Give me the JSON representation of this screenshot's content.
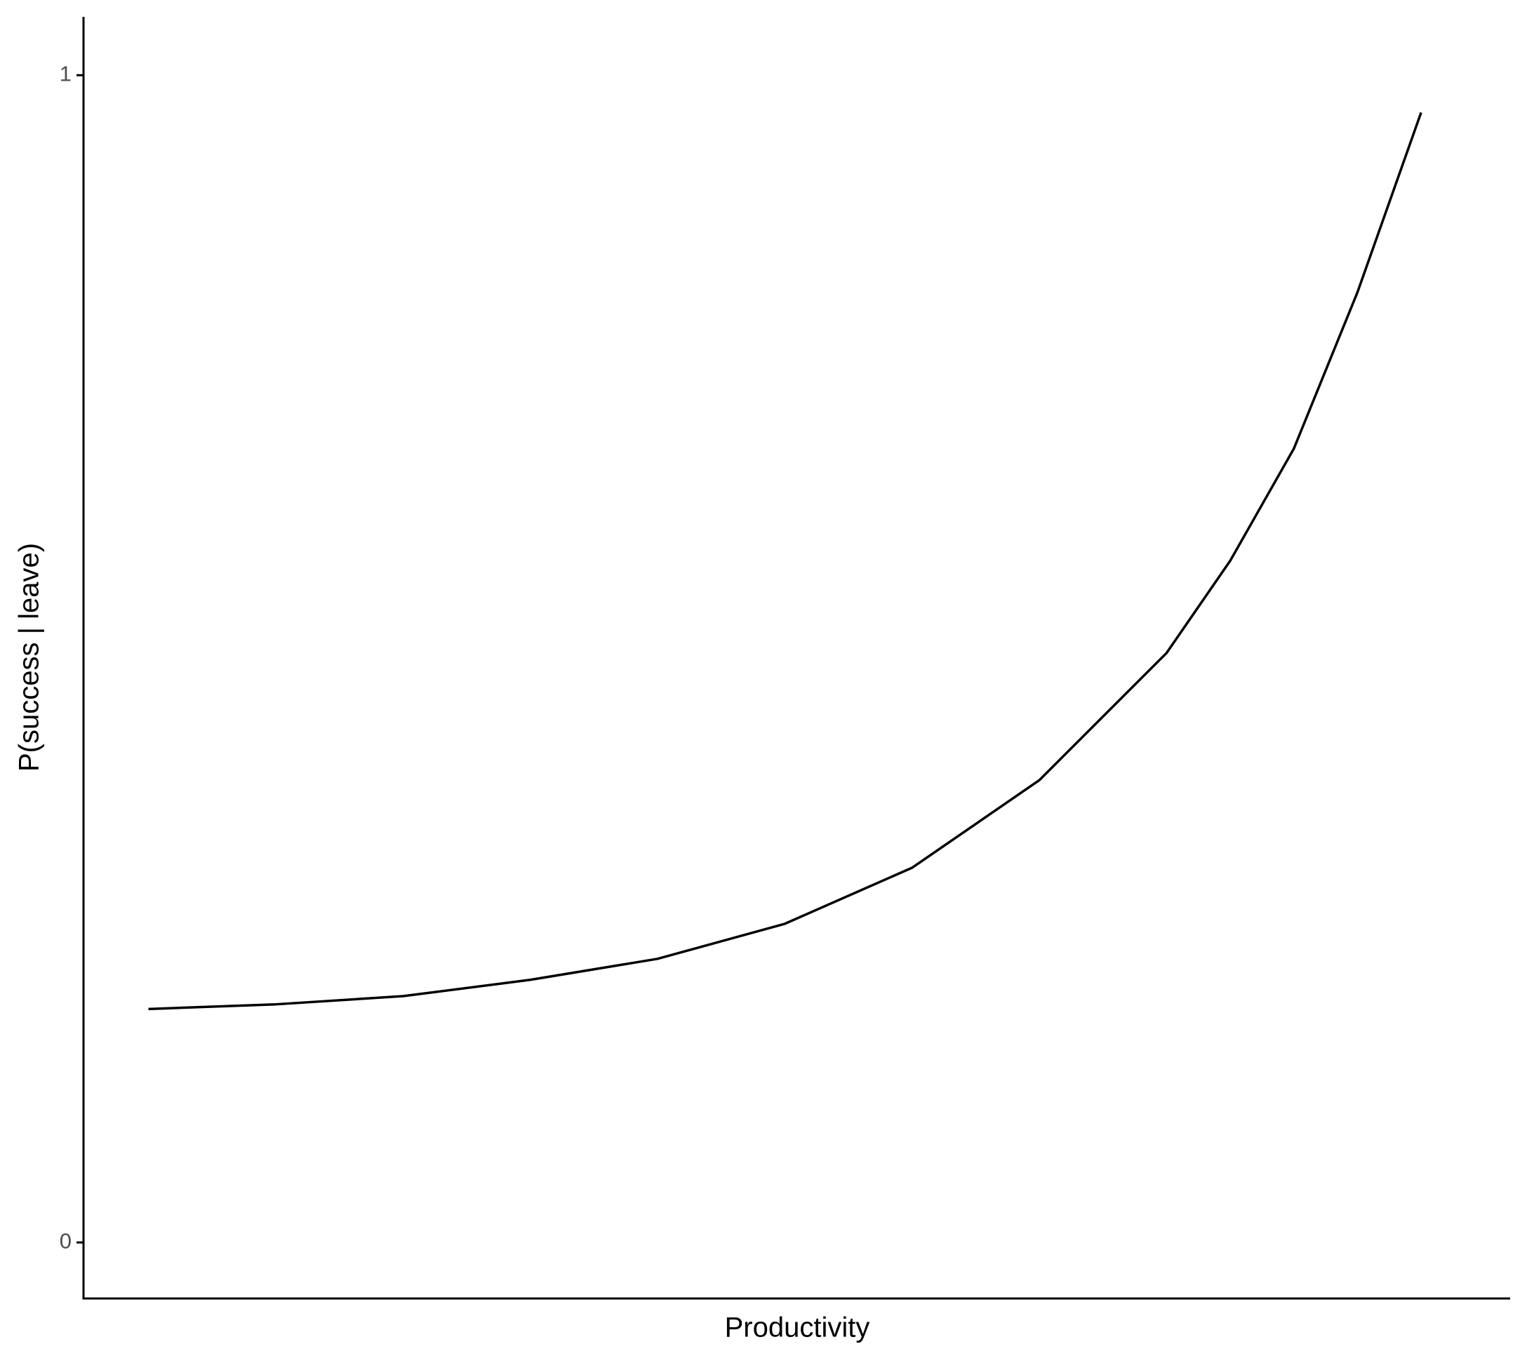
{
  "chart_data": {
    "type": "line",
    "x_label": "Productivity",
    "y_label": "P(success | leave)",
    "x": [
      0,
      0.1,
      0.2,
      0.3,
      0.4,
      0.5,
      0.6,
      0.7,
      0.8,
      0.85,
      0.9,
      0.95,
      1.0
    ],
    "series": [
      {
        "color": "#000000",
        "values": [
          0.2,
          0.204,
          0.211,
          0.225,
          0.243,
          0.273,
          0.321,
          0.396,
          0.505,
          0.584,
          0.68,
          0.814,
          0.968
        ]
      }
    ],
    "xlim": [
      -0.051,
      1.07
    ],
    "ylim": [
      -0.048,
      1.05
    ],
    "yticks": [
      0,
      1
    ],
    "grid": false
  }
}
